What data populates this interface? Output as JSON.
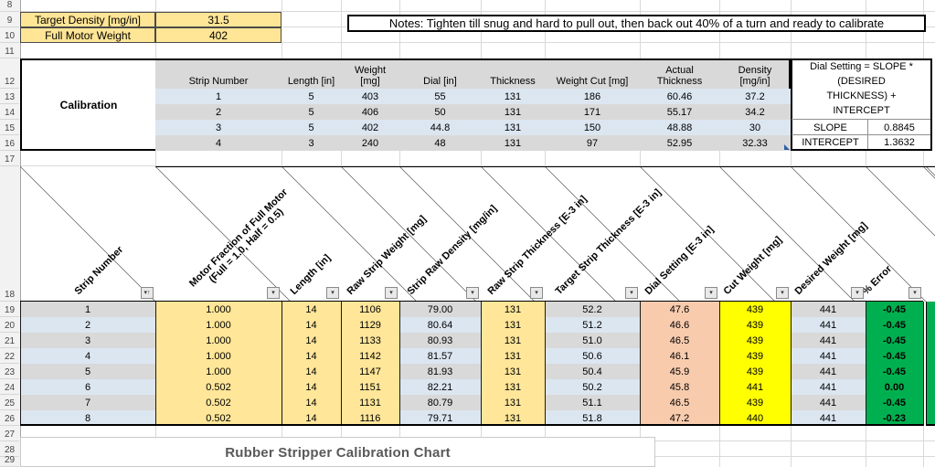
{
  "colors": {
    "tan": "#ffe699",
    "gold": "#ffe596",
    "blue_stripe": "#dce6f1",
    "gray_stripe": "#d9d9d9",
    "salmon": "#f8cbad",
    "yellow": "#ffff00",
    "green": "#00b050",
    "header_gray": "#d9d9d9"
  },
  "row_headers": [
    "8",
    "9",
    "10",
    "11",
    "12",
    "13",
    "14",
    "15",
    "16",
    "17",
    "18",
    "19",
    "20",
    "21",
    "22",
    "23",
    "24",
    "25",
    "26",
    "27",
    "28",
    "29"
  ],
  "top_section": {
    "fields": [
      {
        "label": "Target Density [mg/in]",
        "value": "31.5"
      },
      {
        "label": "Full Motor Weight",
        "value": "402"
      }
    ],
    "notes": "Notes: Tighten till snug and hard to pull out, then back out 40% of a turn and ready to calibrate"
  },
  "calibration_table": {
    "title": "Calibration",
    "headers": [
      "Strip Number",
      "Length [in]",
      "Weight\n[mg]",
      "Dial [in]",
      "Thickness",
      "Weight Cut [mg]",
      "Actual\nThickness",
      "Density\n[mg/in]"
    ],
    "rows": [
      [
        "1",
        "5",
        "403",
        "55",
        "131",
        "186",
        "60.46",
        "37.2"
      ],
      [
        "2",
        "5",
        "406",
        "50",
        "131",
        "171",
        "55.17",
        "34.2"
      ],
      [
        "3",
        "5",
        "402",
        "44.8",
        "131",
        "150",
        "48.88",
        "30"
      ],
      [
        "4",
        "3",
        "240",
        "48",
        "131",
        "97",
        "52.95",
        "32.33"
      ]
    ],
    "formula_box": {
      "formula": "Dial Setting = SLOPE *\n(DESIRED\nTHICKNESS) +\nINTERCEPT",
      "slope_label": "SLOPE",
      "slope_value": "0.8845",
      "intercept_label": "INTERCEPT",
      "intercept_value": "1.3632"
    }
  },
  "main_table": {
    "columns": [
      {
        "label": "Strip Number",
        "fill": "striped",
        "filter_icon": "sort-ascending-filter-icon"
      },
      {
        "label": "Motor Fraction of Full Motor\n(Full = 1.0, Half = 0.5)",
        "fill": "tan",
        "filter_icon": "filter-dropdown-icon"
      },
      {
        "label": "Length [in]",
        "fill": "tan",
        "filter_icon": "filter-dropdown-icon"
      },
      {
        "label": "Raw Strip Weight [mg]",
        "fill": "tan",
        "filter_icon": "filter-dropdown-icon"
      },
      {
        "label": "Strip Raw Density [mg/in]",
        "fill": "striped",
        "filter_icon": "filter-dropdown-icon"
      },
      {
        "label": "Raw Strip Thickness [E-3 in]",
        "fill": "tan",
        "filter_icon": "filter-dropdown-icon"
      },
      {
        "label": "Target Strip Thickness [E-3 in]",
        "fill": "striped",
        "filter_icon": "filter-dropdown-icon"
      },
      {
        "label": "Dial Setting [E-3 in]",
        "fill": "salmon",
        "filter_icon": "filter-dropdown-icon"
      },
      {
        "label": "Cut Weight [mg]",
        "fill": "yellow",
        "filter_icon": "filter-dropdown-icon"
      },
      {
        "label": "Desired Weight [mg]",
        "fill": "striped",
        "filter_icon": "filter-dropdown-icon"
      },
      {
        "label": "% Error",
        "fill": "green",
        "filter_icon": "filter-dropdown-icon"
      }
    ],
    "rows": [
      [
        "1",
        "1.000",
        "14",
        "1106",
        "79.00",
        "131",
        "52.2",
        "47.6",
        "439",
        "441",
        "-0.45"
      ],
      [
        "2",
        "1.000",
        "14",
        "1129",
        "80.64",
        "131",
        "51.2",
        "46.6",
        "439",
        "441",
        "-0.45"
      ],
      [
        "3",
        "1.000",
        "14",
        "1133",
        "80.93",
        "131",
        "51.0",
        "46.5",
        "439",
        "441",
        "-0.45"
      ],
      [
        "4",
        "1.000",
        "14",
        "1142",
        "81.57",
        "131",
        "50.6",
        "46.1",
        "439",
        "441",
        "-0.45"
      ],
      [
        "5",
        "1.000",
        "14",
        "1147",
        "81.93",
        "131",
        "50.4",
        "45.9",
        "439",
        "441",
        "-0.45"
      ],
      [
        "6",
        "0.502",
        "14",
        "1151",
        "82.21",
        "131",
        "50.2",
        "45.8",
        "441",
        "441",
        "0.00"
      ],
      [
        "7",
        "0.502",
        "14",
        "1131",
        "80.79",
        "131",
        "51.1",
        "46.5",
        "439",
        "441",
        "-0.45"
      ],
      [
        "8",
        "0.502",
        "14",
        "1116",
        "79.71",
        "131",
        "51.8",
        "47.2",
        "440",
        "441",
        "-0.23"
      ]
    ]
  },
  "chart": {
    "title": "Rubber Stripper Calibration Chart"
  }
}
